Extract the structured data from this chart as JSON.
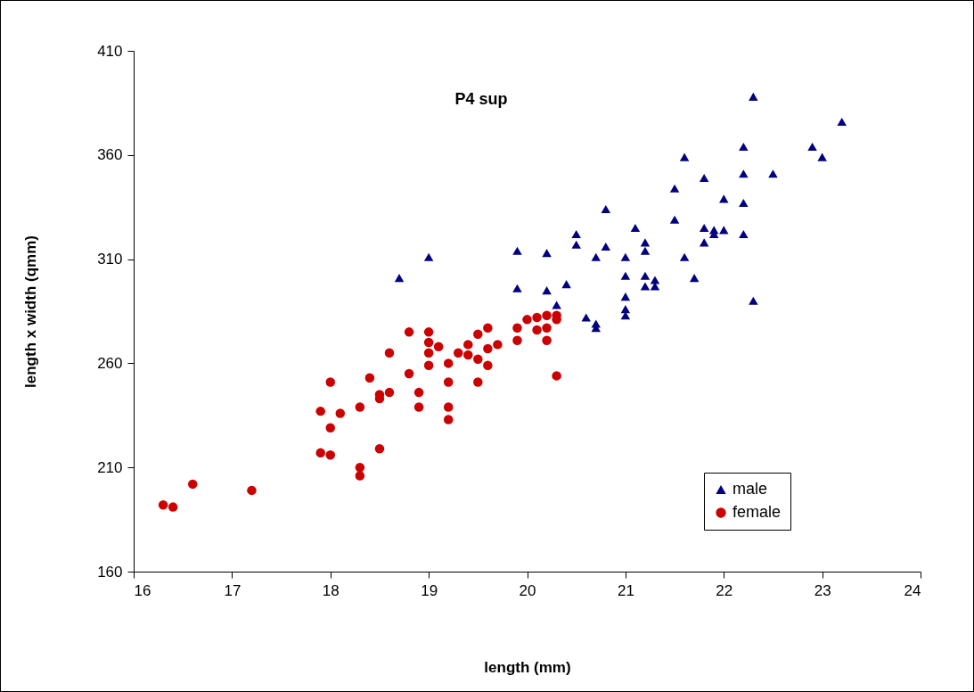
{
  "chart_data": {
    "type": "scatter",
    "title": "P4 sup",
    "xlabel": "length (mm)",
    "ylabel": "length x width (qmm)",
    "xlim": [
      16,
      24
    ],
    "xticks": [
      16,
      17,
      18,
      19,
      20,
      21,
      22,
      23,
      24
    ],
    "ylim": [
      160,
      410
    ],
    "yticks": [
      160,
      210,
      260,
      310,
      360,
      410
    ],
    "grid": false,
    "legend": "bottom right",
    "series": [
      {
        "name": "male",
        "color": "#000080",
        "marker": "triangle",
        "x": [
          18.7,
          19.0,
          19.9,
          19.9,
          20.2,
          20.2,
          20.4,
          20.3,
          20.5,
          20.5,
          20.6,
          20.7,
          20.7,
          20.7,
          20.8,
          20.8,
          21.0,
          21.0,
          21.0,
          21.0,
          21.0,
          21.1,
          21.2,
          21.2,
          21.2,
          21.2,
          21.3,
          21.3,
          21.5,
          21.5,
          21.6,
          21.6,
          21.7,
          21.8,
          21.8,
          21.8,
          21.9,
          21.9,
          22.0,
          22.0,
          22.2,
          22.2,
          22.2,
          22.2,
          22.3,
          22.3,
          22.5,
          22.9,
          23.0,
          23.2
        ],
        "values": [
          301,
          311,
          314,
          296,
          313,
          295,
          298,
          288,
          322,
          317,
          282,
          311,
          279,
          277,
          316,
          334,
          311,
          302,
          292,
          286,
          283,
          325,
          318,
          314,
          302,
          297,
          300,
          297,
          344,
          329,
          311,
          359,
          301,
          349,
          325,
          318,
          324,
          322,
          339,
          324,
          364,
          351,
          337,
          322,
          388,
          290,
          351,
          364,
          359,
          376
        ]
      },
      {
        "name": "female",
        "color": "#cc0000",
        "marker": "circle",
        "x": [
          16.3,
          16.4,
          16.6,
          17.2,
          17.9,
          17.9,
          18.0,
          18.0,
          18.0,
          18.1,
          18.3,
          18.3,
          18.3,
          18.4,
          18.5,
          18.5,
          18.5,
          18.6,
          18.6,
          18.8,
          18.8,
          18.9,
          18.9,
          19.0,
          19.0,
          19.0,
          19.0,
          19.1,
          19.2,
          19.2,
          19.2,
          19.2,
          19.3,
          19.4,
          19.4,
          19.5,
          19.5,
          19.5,
          19.6,
          19.6,
          19.6,
          19.7,
          19.9,
          19.9,
          20.0,
          20.1,
          20.1,
          20.2,
          20.2,
          20.2,
          20.3,
          20.3,
          20.3
        ],
        "values": [
          192,
          191,
          202,
          199,
          237,
          217,
          251,
          229,
          216,
          236,
          239,
          210,
          206,
          253,
          245,
          243,
          219,
          265,
          246,
          275,
          255,
          246,
          239,
          275,
          270,
          265,
          259,
          268,
          260,
          251,
          239,
          233,
          265,
          269,
          264,
          262,
          274,
          251,
          277,
          267,
          259,
          269,
          277,
          271,
          281,
          282,
          276,
          283,
          277,
          271,
          283,
          281,
          254
        ]
      }
    ]
  }
}
